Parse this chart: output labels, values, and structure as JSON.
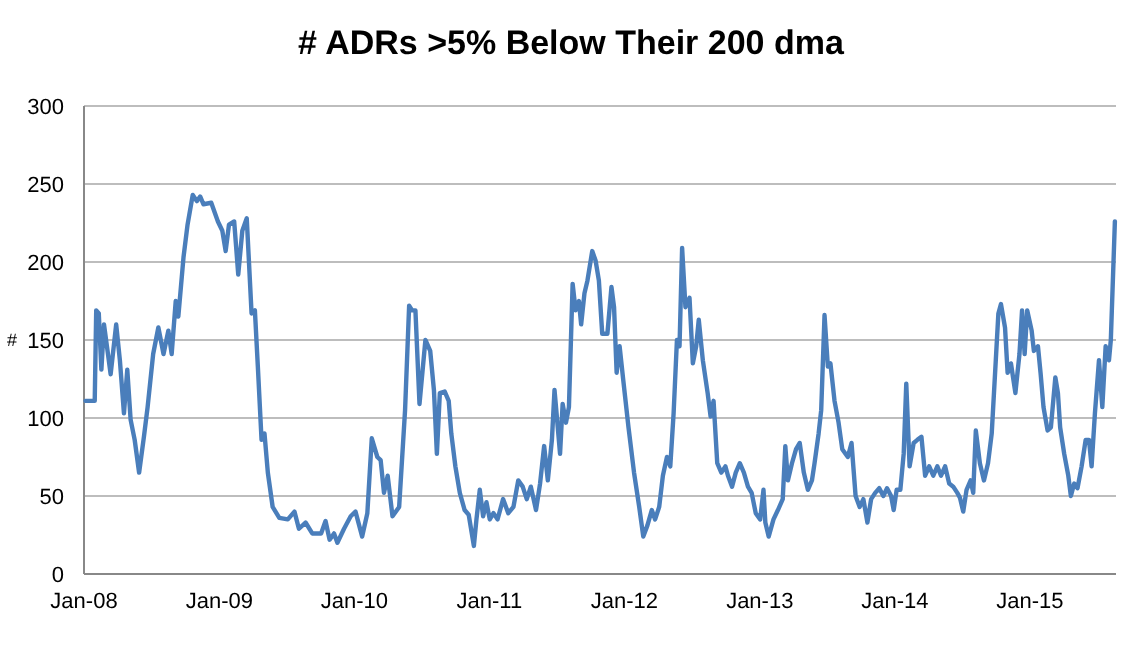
{
  "chart_data": {
    "type": "line",
    "title": "# ADRs >5% Below Their 200 dma",
    "ylabel": "#",
    "xlim": [
      "2008-01-01",
      "2015-08-22"
    ],
    "xticks": [
      {
        "value": "2008-01-01",
        "label": "Jan-08"
      },
      {
        "value": "2009-01-01",
        "label": "Jan-09"
      },
      {
        "value": "2010-01-01",
        "label": "Jan-10"
      },
      {
        "value": "2011-01-01",
        "label": "Jan-11"
      },
      {
        "value": "2012-01-01",
        "label": "Jan-12"
      },
      {
        "value": "2013-01-01",
        "label": "Jan-13"
      },
      {
        "value": "2014-01-01",
        "label": "Jan-14"
      },
      {
        "value": "2015-01-01",
        "label": "Jan-15"
      }
    ],
    "ylim": [
      0,
      300
    ],
    "yticks": [
      0,
      50,
      100,
      150,
      200,
      250,
      300
    ],
    "grid": "y",
    "line_style": "solid",
    "series": [
      {
        "color": "#4a7ebb",
        "x": [
          "2008-01-05",
          "2008-01-30",
          "2008-02-03",
          "2008-02-10",
          "2008-02-17",
          "2008-02-24",
          "2008-03-03",
          "2008-03-13",
          "2008-03-28",
          "2008-04-07",
          "2008-04-18",
          "2008-04-27",
          "2008-05-06",
          "2008-05-17",
          "2008-05-29",
          "2008-06-11",
          "2008-06-21",
          "2008-07-06",
          "2008-07-20",
          "2008-08-03",
          "2008-08-16",
          "2008-08-25",
          "2008-09-05",
          "2008-09-12",
          "2008-09-26",
          "2008-10-07",
          "2008-10-21",
          "2008-11-01",
          "2008-11-10",
          "2008-11-19",
          "2008-12-10",
          "2008-12-28",
          "2009-01-09",
          "2009-01-18",
          "2009-01-27",
          "2009-02-10",
          "2009-02-21",
          "2009-03-04",
          "2009-03-16",
          "2009-03-29",
          "2009-04-07",
          "2009-04-15",
          "2009-04-25",
          "2009-05-03",
          "2009-05-12",
          "2009-05-25",
          "2009-06-12",
          "2009-07-05",
          "2009-07-23",
          "2009-08-04",
          "2009-08-22",
          "2009-09-09",
          "2009-10-03",
          "2009-10-15",
          "2009-10-26",
          "2009-11-07",
          "2009-11-16",
          "2009-12-04",
          "2009-12-22",
          "2010-01-04",
          "2010-01-22",
          "2010-02-05",
          "2010-02-17",
          "2010-03-04",
          "2010-03-13",
          "2010-03-22",
          "2010-04-01",
          "2010-04-14",
          "2010-05-02",
          "2010-05-18",
          "2010-05-29",
          "2010-06-06",
          "2010-06-15",
          "2010-06-26",
          "2010-07-12",
          "2010-07-25",
          "2010-08-04",
          "2010-08-12",
          "2010-08-20",
          "2010-09-02",
          "2010-09-13",
          "2010-09-20",
          "2010-10-01",
          "2010-10-13",
          "2010-10-26",
          "2010-11-06",
          "2010-11-20",
          "2010-11-27",
          "2010-12-06",
          "2010-12-15",
          "2010-12-24",
          "2011-01-02",
          "2011-01-12",
          "2011-01-23",
          "2011-02-07",
          "2011-02-21",
          "2011-03-07",
          "2011-03-20",
          "2011-04-01",
          "2011-04-12",
          "2011-04-23",
          "2011-05-07",
          "2011-05-18",
          "2011-05-29",
          "2011-06-08",
          "2011-06-19",
          "2011-06-26",
          "2011-07-03",
          "2011-07-11",
          "2011-07-18",
          "2011-07-27",
          "2011-08-04",
          "2011-08-14",
          "2011-08-22",
          "2011-08-31",
          "2011-09-06",
          "2011-09-15",
          "2011-09-23",
          "2011-10-06",
          "2011-10-15",
          "2011-10-24",
          "2011-11-02",
          "2011-11-16",
          "2011-11-27",
          "2011-12-04",
          "2011-12-11",
          "2011-12-19",
          "2011-12-29",
          "2012-01-12",
          "2012-01-27",
          "2012-02-10",
          "2012-02-21",
          "2012-03-03",
          "2012-03-15",
          "2012-03-24",
          "2012-04-04",
          "2012-04-14",
          "2012-04-25",
          "2012-05-04",
          "2012-05-13",
          "2012-05-22",
          "2012-05-29",
          "2012-06-05",
          "2012-06-14",
          "2012-06-25",
          "2012-07-04",
          "2012-07-13",
          "2012-07-20",
          "2012-07-31",
          "2012-08-13",
          "2012-08-21",
          "2012-08-29",
          "2012-09-08",
          "2012-09-19",
          "2012-09-30",
          "2012-10-07",
          "2012-10-18",
          "2012-10-28",
          "2012-11-08",
          "2012-11-19",
          "2012-11-30",
          "2012-12-10",
          "2012-12-21",
          "2013-01-02",
          "2013-01-11",
          "2013-01-16",
          "2013-01-25",
          "2013-02-07",
          "2013-02-19",
          "2013-03-04",
          "2013-03-11",
          "2013-03-18",
          "2013-03-29",
          "2013-04-09",
          "2013-04-19",
          "2013-04-30",
          "2013-05-11",
          "2013-05-22",
          "2013-05-29",
          "2013-06-09",
          "2013-06-16",
          "2013-06-25",
          "2013-07-04",
          "2013-07-11",
          "2013-07-22",
          "2013-08-02",
          "2013-08-12",
          "2013-08-27",
          "2013-09-06",
          "2013-09-17",
          "2013-09-28",
          "2013-10-08",
          "2013-10-19",
          "2013-10-29",
          "2013-11-09",
          "2013-11-20",
          "2013-12-01",
          "2013-12-11",
          "2013-12-22",
          "2013-12-29",
          "2014-01-06",
          "2014-01-16",
          "2014-01-25",
          "2014-02-01",
          "2014-02-10",
          "2014-02-21",
          "2014-03-03",
          "2014-03-14",
          "2014-03-24",
          "2014-04-04",
          "2014-04-15",
          "2014-04-26",
          "2014-05-06",
          "2014-05-17",
          "2014-05-28",
          "2014-06-08",
          "2014-06-19",
          "2014-06-26",
          "2014-07-05",
          "2014-07-14",
          "2014-07-25",
          "2014-08-01",
          "2014-08-08",
          "2014-08-19",
          "2014-08-30",
          "2014-09-10",
          "2014-09-20",
          "2014-10-01",
          "2014-10-08",
          "2014-10-15",
          "2014-10-26",
          "2014-11-02",
          "2014-11-11",
          "2014-11-23",
          "2014-12-04",
          "2014-12-11",
          "2014-12-18",
          "2014-12-25",
          "2015-01-06",
          "2015-01-12",
          "2015-01-23",
          "2015-01-30",
          "2015-02-07",
          "2015-02-18",
          "2015-02-27",
          "2015-03-11",
          "2015-03-18",
          "2015-03-24",
          "2015-04-04",
          "2015-04-15",
          "2015-04-22",
          "2015-05-01",
          "2015-05-10",
          "2015-05-21",
          "2015-06-01",
          "2015-06-10",
          "2015-06-17",
          "2015-06-26",
          "2015-07-07",
          "2015-07-16",
          "2015-07-25",
          "2015-08-03",
          "2015-08-08",
          "2015-08-19"
        ],
        "values": [
          111,
          111,
          169,
          167,
          131,
          160,
          146,
          128,
          160,
          137,
          103,
          131,
          99,
          86,
          65,
          88,
          107,
          141,
          158,
          141,
          156,
          141,
          175,
          165,
          203,
          224,
          243,
          239,
          242,
          237,
          238,
          226,
          220,
          207,
          224,
          226,
          192,
          220,
          228,
          167,
          169,
          133,
          86,
          90,
          65,
          43,
          36,
          35,
          40,
          29,
          33,
          26,
          26,
          34,
          22,
          26,
          20,
          29,
          37,
          40,
          24,
          39,
          87,
          75,
          73,
          52,
          63,
          37,
          43,
          105,
          172,
          169,
          169,
          109,
          150,
          143,
          118,
          77,
          116,
          117,
          111,
          90,
          69,
          52,
          41,
          38,
          18,
          35,
          54,
          37,
          46,
          35,
          39,
          35,
          48,
          39,
          43,
          60,
          56,
          48,
          56,
          41,
          58,
          82,
          60,
          86,
          118,
          99,
          77,
          109,
          97,
          107,
          186,
          169,
          175,
          160,
          180,
          188,
          207,
          201,
          188,
          154,
          154,
          184,
          171,
          129,
          146,
          124,
          94,
          65,
          43,
          24,
          31,
          41,
          35,
          43,
          63,
          75,
          69,
          103,
          150,
          146,
          209,
          171,
          177,
          135,
          146,
          163,
          137,
          116,
          101,
          111,
          71,
          65,
          69,
          63,
          56,
          65,
          71,
          65,
          56,
          52,
          39,
          35,
          54,
          33,
          24,
          35,
          41,
          48,
          82,
          60,
          71,
          80,
          84,
          65,
          54,
          60,
          71,
          90,
          105,
          166,
          133,
          135,
          111,
          97,
          80,
          75,
          84,
          50,
          43,
          48,
          33,
          48,
          52,
          55,
          50,
          55,
          50,
          41,
          54,
          54,
          77,
          122,
          69,
          84,
          86,
          88,
          63,
          69,
          63,
          69,
          63,
          69,
          58,
          56,
          52,
          49,
          40,
          54,
          60,
          52,
          92,
          71,
          60,
          71,
          90,
          137,
          167,
          173,
          158,
          129,
          135,
          116,
          141,
          169,
          141,
          169,
          156,
          143,
          146,
          129,
          107,
          92,
          94,
          126,
          116,
          94,
          77,
          63,
          50,
          58,
          55,
          69,
          86,
          86,
          69,
          103,
          137,
          107,
          146,
          137,
          150,
          226
        ]
      }
    ]
  }
}
